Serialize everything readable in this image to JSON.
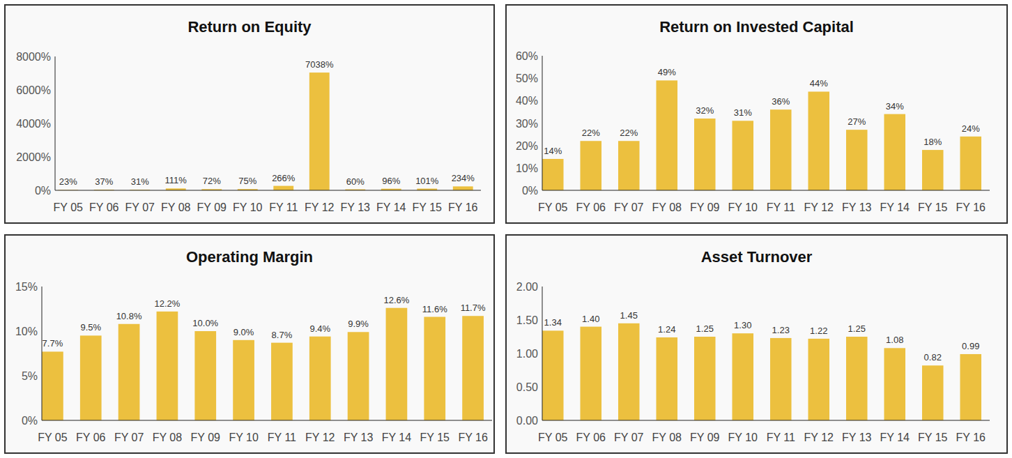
{
  "chart_data": [
    {
      "type": "bar",
      "title": "Return on Equity",
      "categories": [
        "FY 05",
        "FY 06",
        "FY 07",
        "FY 08",
        "FY 09",
        "FY 10",
        "FY 11",
        "FY 12",
        "FY 13",
        "FY 14",
        "FY 15",
        "FY 16"
      ],
      "values": [
        23,
        37,
        31,
        111,
        72,
        75,
        266,
        7038,
        60,
        96,
        101,
        234
      ],
      "value_labels": [
        "23%",
        "37%",
        "31%",
        "111%",
        "72%",
        "75%",
        "266%",
        "7038%",
        "60%",
        "96%",
        "101%",
        "234%"
      ],
      "color": "#ecc03f",
      "ylim": [
        0,
        8000
      ],
      "yticks": [
        {
          "value": 0,
          "label": "0%"
        },
        {
          "value": 2000,
          "label": "2000%"
        },
        {
          "value": 4000,
          "label": "4000%"
        },
        {
          "value": 6000,
          "label": "6000%"
        },
        {
          "value": 8000,
          "label": "8000%"
        }
      ],
      "grid": false,
      "data_labels": true
    },
    {
      "type": "bar",
      "title": "Return on Invested Capital",
      "categories": [
        "FY 05",
        "FY 06",
        "FY 07",
        "FY 08",
        "FY 09",
        "FY 10",
        "FY 11",
        "FY 12",
        "FY 13",
        "FY 14",
        "FY 15",
        "FY 16"
      ],
      "values": [
        14,
        22,
        22,
        49,
        32,
        31,
        36,
        44,
        27,
        34,
        18,
        24
      ],
      "value_labels": [
        "14%",
        "22%",
        "22%",
        "49%",
        "32%",
        "31%",
        "36%",
        "44%",
        "27%",
        "34%",
        "18%",
        "24%"
      ],
      "color": "#ecc03f",
      "ylim": [
        0,
        60
      ],
      "yticks": [
        {
          "value": 0,
          "label": "0%"
        },
        {
          "value": 10,
          "label": "10%"
        },
        {
          "value": 20,
          "label": "20%"
        },
        {
          "value": 30,
          "label": "30%"
        },
        {
          "value": 40,
          "label": "40%"
        },
        {
          "value": 50,
          "label": "50%"
        },
        {
          "value": 60,
          "label": "60%"
        }
      ],
      "grid": false,
      "data_labels": true
    },
    {
      "type": "bar",
      "title": "Operating Margin",
      "categories": [
        "FY 05",
        "FY 06",
        "FY 07",
        "FY 08",
        "FY 09",
        "FY 10",
        "FY 11",
        "FY 12",
        "FY 13",
        "FY 14",
        "FY 15",
        "FY 16"
      ],
      "values": [
        7.7,
        9.5,
        10.8,
        12.2,
        10.0,
        9.0,
        8.7,
        9.4,
        9.9,
        12.6,
        11.6,
        11.7
      ],
      "value_labels": [
        "7.7%",
        "9.5%",
        "10.8%",
        "12.2%",
        "10.0%",
        "9.0%",
        "8.7%",
        "9.4%",
        "9.9%",
        "12.6%",
        "11.6%",
        "11.7%"
      ],
      "color": "#ecc03f",
      "ylim": [
        0,
        15
      ],
      "yticks": [
        {
          "value": 0,
          "label": "0%"
        },
        {
          "value": 5,
          "label": "5%"
        },
        {
          "value": 10,
          "label": "10%"
        },
        {
          "value": 15,
          "label": "15%"
        }
      ],
      "grid": false,
      "data_labels": true
    },
    {
      "type": "bar",
      "title": "Asset Turnover",
      "categories": [
        "FY 05",
        "FY 06",
        "FY 07",
        "FY 08",
        "FY 09",
        "FY 10",
        "FY 11",
        "FY 12",
        "FY 13",
        "FY 14",
        "FY 15",
        "FY 16"
      ],
      "values": [
        1.34,
        1.4,
        1.45,
        1.24,
        1.25,
        1.3,
        1.23,
        1.22,
        1.25,
        1.08,
        0.82,
        0.99
      ],
      "value_labels": [
        "1.34",
        "1.40",
        "1.45",
        "1.24",
        "1.25",
        "1.30",
        "1.23",
        "1.22",
        "1.25",
        "1.08",
        "0.82",
        "0.99"
      ],
      "color": "#ecc03f",
      "ylim": [
        0,
        2
      ],
      "yticks": [
        {
          "value": 0,
          "label": "0.00"
        },
        {
          "value": 0.5,
          "label": "0.50"
        },
        {
          "value": 1,
          "label": "1.00"
        },
        {
          "value": 1.5,
          "label": "1.50"
        },
        {
          "value": 2,
          "label": "2.00"
        }
      ],
      "grid": false,
      "data_labels": true
    }
  ]
}
